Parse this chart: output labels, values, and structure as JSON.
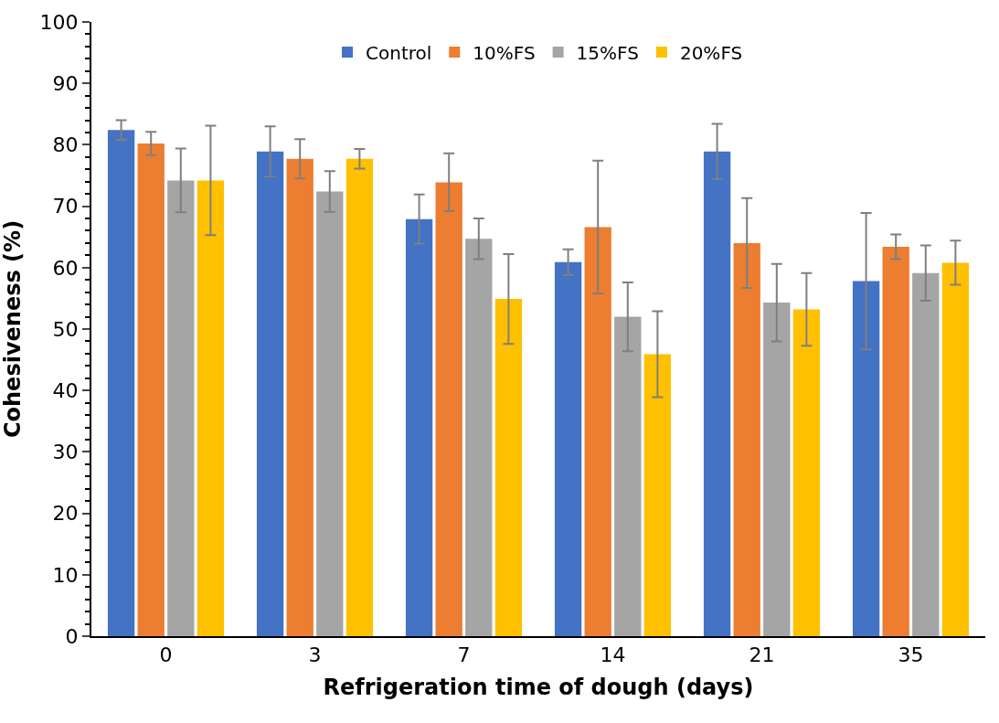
{
  "chart_data": {
    "type": "bar",
    "xlabel": "Refrigeration time of dough (days)",
    "ylabel": "Cohesiveness (%)",
    "categories": [
      "0",
      "3",
      "7",
      "14",
      "21",
      "35"
    ],
    "series": [
      {
        "name": "Control",
        "color": "#4472c4",
        "values": [
          82.4,
          78.9,
          67.9,
          60.9,
          78.9,
          57.8
        ],
        "errors": [
          1.6,
          4.1,
          4.0,
          2.1,
          4.5,
          11.1
        ]
      },
      {
        "name": "10%FS",
        "color": "#ed7d31",
        "values": [
          80.2,
          77.7,
          73.9,
          66.6,
          64.0,
          63.4
        ],
        "errors": [
          1.9,
          3.2,
          4.7,
          10.8,
          7.3,
          2.0
        ]
      },
      {
        "name": "15%FS",
        "color": "#a5a5a5",
        "values": [
          74.2,
          72.4,
          64.7,
          52.0,
          54.3,
          59.1
        ],
        "errors": [
          5.2,
          3.3,
          3.3,
          5.6,
          6.3,
          4.5
        ]
      },
      {
        "name": "20%FS",
        "color": "#ffc000",
        "values": [
          74.2,
          77.7,
          54.9,
          45.9,
          53.2,
          60.8
        ],
        "errors": [
          8.9,
          1.6,
          7.3,
          7.0,
          5.9,
          3.6
        ]
      }
    ],
    "ylim": [
      0,
      100
    ],
    "yticks": [
      0,
      10,
      20,
      30,
      40,
      50,
      60,
      70,
      80,
      90,
      100
    ],
    "legend": "top"
  }
}
